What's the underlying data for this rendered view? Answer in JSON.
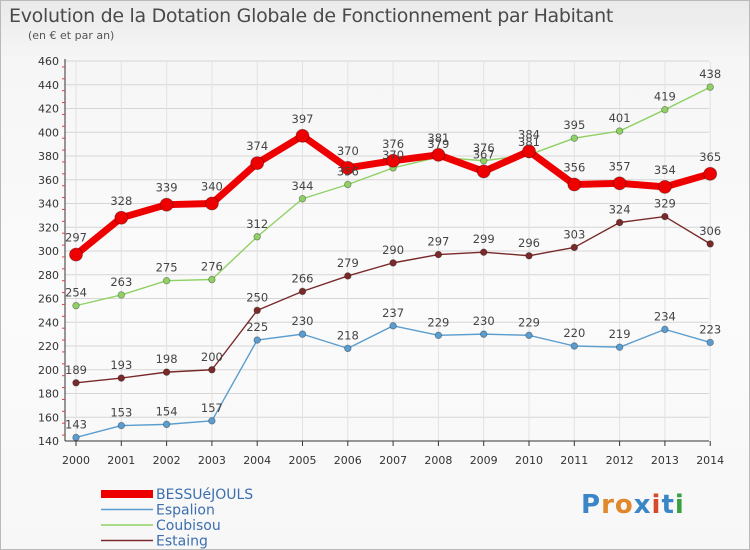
{
  "header": {
    "title": "Evolution de la Dotation Globale de Fonctionnement par Habitant",
    "subtitle": "(en € et par an)"
  },
  "brand": {
    "text": "Proxiti",
    "colors": [
      "#3a86c6",
      "#e0882a",
      "#e0882a",
      "#3a86c6",
      "#d44a2a",
      "#3a86c6",
      "#3aa040"
    ]
  },
  "chart_data": {
    "type": "line",
    "title": "Evolution de la Dotation Globale de Fonctionnement par Habitant",
    "subtitle": "(en € et par an)",
    "x": [
      "2000",
      "2001",
      "2002",
      "2003",
      "2004",
      "2005",
      "2006",
      "2007",
      "2008",
      "2009",
      "2010",
      "2011",
      "2012",
      "2013",
      "2014"
    ],
    "ylim": [
      140,
      460
    ],
    "yticks": [
      140,
      160,
      180,
      200,
      220,
      240,
      260,
      280,
      300,
      320,
      340,
      360,
      380,
      400,
      420,
      440,
      460
    ],
    "grid": true,
    "legend_position": "bottom-left",
    "series": [
      {
        "name": "Estaing",
        "color": "#7a2a2a",
        "values": [
          189,
          193,
          198,
          200,
          250,
          266,
          279,
          290,
          297,
          299,
          296,
          303,
          324,
          329,
          306
        ],
        "labels": [
          "189",
          "193",
          "198",
          "200",
          "250",
          "266",
          "279",
          "290",
          "297",
          "299",
          "296",
          "303",
          "324",
          "329",
          "306"
        ]
      },
      {
        "name": "Espalion",
        "color": "#5b9dcf",
        "values": [
          143,
          153,
          154,
          157,
          225,
          230,
          218,
          237,
          229,
          230,
          229,
          220,
          219,
          234,
          223
        ],
        "labels": [
          "143",
          "153",
          "154",
          "157",
          "225",
          "230",
          "218",
          "237",
          "229",
          "230",
          "229",
          "220",
          "219",
          "234",
          "223"
        ]
      },
      {
        "name": "Coubisou",
        "color": "#8fd165",
        "values": [
          254,
          263,
          275,
          276,
          312,
          344,
          356,
          370,
          379,
          376,
          381,
          395,
          401,
          419,
          438
        ],
        "labels": [
          "254",
          "263",
          "275",
          "276",
          "312",
          "344",
          "356",
          "370",
          "379",
          "376",
          "381",
          "395",
          "401",
          "419",
          "438"
        ]
      },
      {
        "name": "BESSUéJOULS",
        "color": "#ee0000",
        "values": [
          297,
          328,
          339,
          340,
          374,
          397,
          370,
          376,
          381,
          367,
          384,
          356,
          357,
          354,
          365
        ],
        "labels": [
          "297",
          "328",
          "339",
          "340",
          "374",
          "397",
          "370",
          "376",
          "381",
          "367",
          "384",
          "356",
          "357",
          "354",
          "365"
        ]
      }
    ],
    "legend": [
      "BESSUéJOULS",
      "Espalion",
      "Coubisou",
      "Estaing"
    ]
  }
}
